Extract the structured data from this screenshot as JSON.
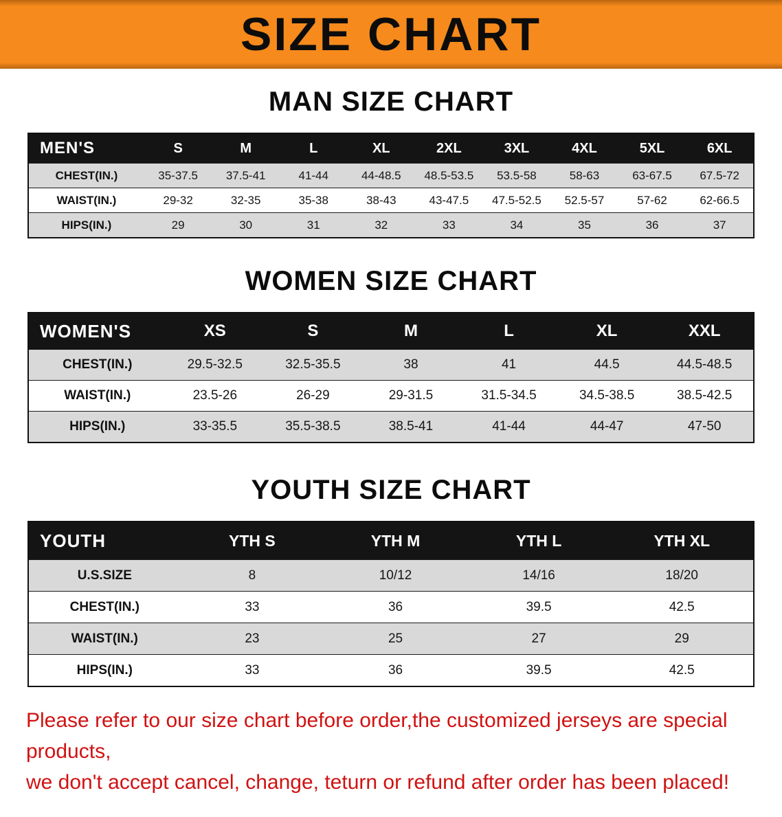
{
  "banner": {
    "title": "SIZE CHART"
  },
  "sections": [
    {
      "id": "men",
      "heading": "MAN SIZE CHART",
      "table": {
        "label": "MEN'S",
        "columns": [
          "S",
          "M",
          "L",
          "XL",
          "2XL",
          "3XL",
          "4XL",
          "5XL",
          "6XL"
        ],
        "rows": [
          {
            "label": "CHEST(IN.)",
            "values": [
              "35-37.5",
              "37.5-41",
              "41-44",
              "44-48.5",
              "48.5-53.5",
              "53.5-58",
              "58-63",
              "63-67.5",
              "67.5-72"
            ]
          },
          {
            "label": "WAIST(IN.)",
            "values": [
              "29-32",
              "32-35",
              "35-38",
              "38-43",
              "43-47.5",
              "47.5-52.5",
              "52.5-57",
              "57-62",
              "62-66.5"
            ]
          },
          {
            "label": "HIPS(IN.)",
            "values": [
              "29",
              "30",
              "31",
              "32",
              "33",
              "34",
              "35",
              "36",
              "37"
            ]
          }
        ]
      }
    },
    {
      "id": "women",
      "heading": "WOMEN SIZE CHART",
      "table": {
        "label": "WOMEN'S",
        "columns": [
          "XS",
          "S",
          "M",
          "L",
          "XL",
          "XXL"
        ],
        "rows": [
          {
            "label": "CHEST(IN.)",
            "values": [
              "29.5-32.5",
              "32.5-35.5",
              "38",
              "41",
              "44.5",
              "44.5-48.5"
            ]
          },
          {
            "label": "WAIST(IN.)",
            "values": [
              "23.5-26",
              "26-29",
              "29-31.5",
              "31.5-34.5",
              "34.5-38.5",
              "38.5-42.5"
            ]
          },
          {
            "label": "HIPS(IN.)",
            "values": [
              "33-35.5",
              "35.5-38.5",
              "38.5-41",
              "41-44",
              "44-47",
              "47-50"
            ]
          }
        ]
      }
    },
    {
      "id": "youth",
      "heading": "YOUTH SIZE CHART",
      "table": {
        "label": "YOUTH",
        "columns": [
          "YTH S",
          "YTH M",
          "YTH L",
          "YTH XL"
        ],
        "rows": [
          {
            "label": "U.S.SIZE",
            "values": [
              "8",
              "10/12",
              "14/16",
              "18/20"
            ]
          },
          {
            "label": "CHEST(IN.)",
            "values": [
              "33",
              "36",
              "39.5",
              "42.5"
            ]
          },
          {
            "label": "WAIST(IN.)",
            "values": [
              "23",
              "25",
              "27",
              "29"
            ]
          },
          {
            "label": "HIPS(IN.)",
            "values": [
              "33",
              "36",
              "39.5",
              "42.5"
            ]
          }
        ]
      }
    }
  ],
  "disclaimer": {
    "line1": "Please refer to our size chart before order,the customized jerseys are special products,",
    "line2": "we don't accept cancel, change, teturn or refund after order has been placed!"
  },
  "colors": {
    "banner_bg": "#f68a1c",
    "table_header_bg": "#141414",
    "row_stripe_bg": "#d9d9d9",
    "disclaimer_text": "#d01212"
  }
}
